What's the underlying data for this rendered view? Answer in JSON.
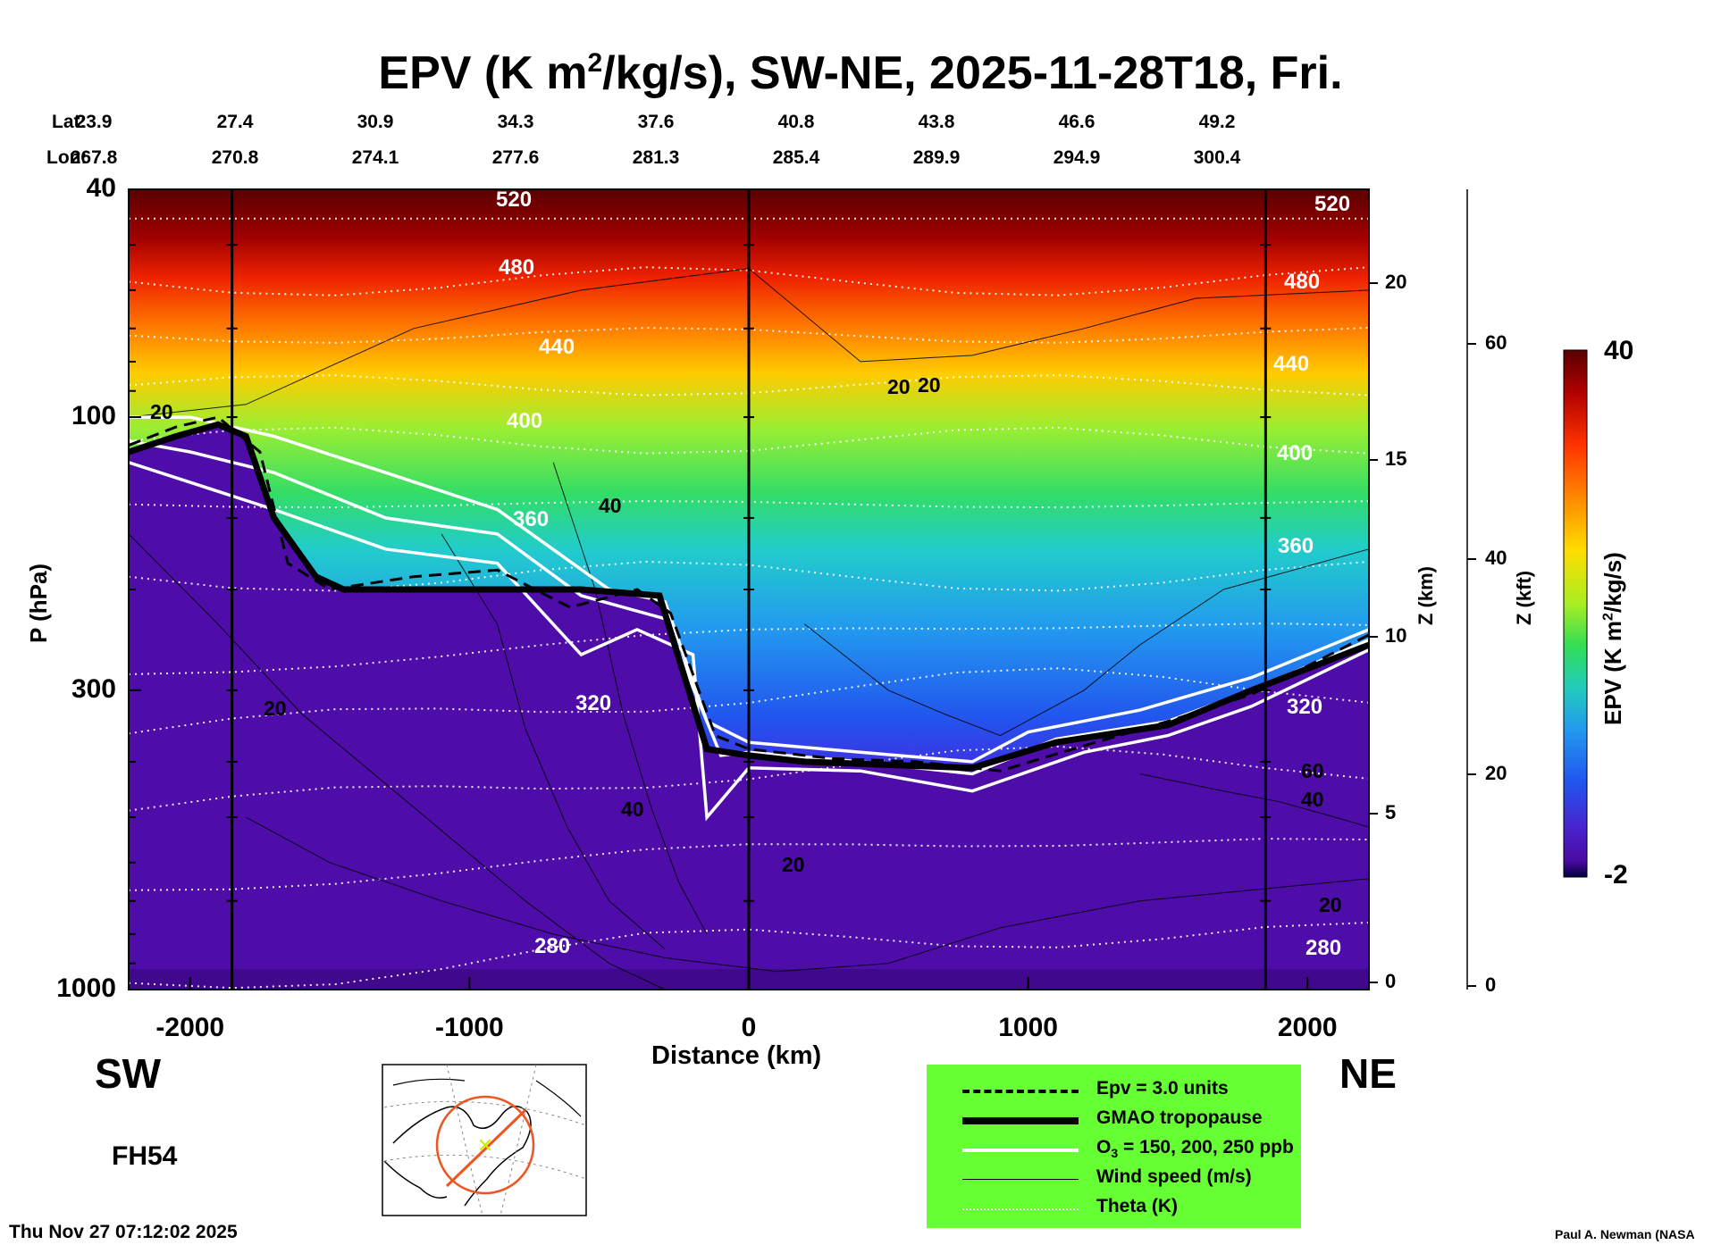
{
  "title": {
    "prefix": "EPV (K m",
    "sup": "2",
    "suffix": "/kg/s), SW-NE, 2025-11-28T18, Fri."
  },
  "header": {
    "lat_label": "Lat:",
    "lon_label": "Lon:",
    "lat_values": [
      "23.9",
      "27.4",
      "30.9",
      "34.3",
      "37.6",
      "40.8",
      "43.8",
      "46.6",
      "49.2"
    ],
    "lon_values": [
      "267.8",
      "270.8",
      "274.1",
      "277.6",
      "281.3",
      "285.4",
      "289.9",
      "294.9",
      "300.4"
    ]
  },
  "chart_data": {
    "type": "heatmap",
    "title": "EPV (K m2/kg/s), SW-NE, 2025-11-28T18, Fri.",
    "xlabel": "Distance (km)",
    "ylabel": "P (hPa)",
    "xlim": [
      -2220,
      2220
    ],
    "x_ticks": [
      "-2000",
      "-1000",
      "0",
      "1000",
      "2000"
    ],
    "y_ticks": [
      "40",
      "100",
      "300",
      "1000"
    ],
    "z_km_ticks": [
      "20",
      "15",
      "10",
      "5",
      "0"
    ],
    "z_km_label": "Z (km)",
    "z_kft_ticks": [
      "60",
      "40",
      "20",
      "0"
    ],
    "z_kft_label": "Z (kft)",
    "colorbar": {
      "label_prefix": "EPV (K m",
      "label_sup": "2",
      "label_suffix": "/kg/s)",
      "max_label": "40",
      "min_label": "-2",
      "range": [
        -2,
        40
      ]
    },
    "theta_labels": [
      "520",
      "480",
      "440",
      "400",
      "360",
      "320",
      "280",
      "520",
      "480",
      "440",
      "400",
      "360",
      "320",
      "280"
    ],
    "wind_labels": [
      "20",
      "20",
      "40",
      "20",
      "40",
      "20",
      "20",
      "60",
      "40",
      "20"
    ],
    "tropopause": [
      [
        -2220,
        115
      ],
      [
        -2050,
        108
      ],
      [
        -1900,
        103
      ],
      [
        -1800,
        108
      ],
      [
        -1700,
        150
      ],
      [
        -1550,
        190
      ],
      [
        -1450,
        200
      ],
      [
        -600,
        200
      ],
      [
        -320,
        205
      ],
      [
        -150,
        380
      ],
      [
        0,
        390
      ],
      [
        200,
        400
      ],
      [
        500,
        405
      ],
      [
        800,
        410
      ],
      [
        1100,
        370
      ],
      [
        1500,
        345
      ],
      [
        1800,
        300
      ],
      [
        2220,
        250
      ]
    ],
    "epv3_contour": [
      [
        -2220,
        112
      ],
      [
        -2050,
        104
      ],
      [
        -1900,
        100
      ],
      [
        -1750,
        115
      ],
      [
        -1650,
        180
      ],
      [
        -1500,
        200
      ],
      [
        -1200,
        190
      ],
      [
        -900,
        185
      ],
      [
        -640,
        215
      ],
      [
        -400,
        200
      ],
      [
        -280,
        220
      ],
      [
        -120,
        360
      ],
      [
        0,
        380
      ],
      [
        300,
        395
      ],
      [
        600,
        400
      ],
      [
        900,
        415
      ],
      [
        1200,
        375
      ],
      [
        1500,
        340
      ],
      [
        1800,
        305
      ],
      [
        2220,
        240
      ]
    ],
    "ozone_contours": [
      [
        [
          -2220,
          100
        ],
        [
          -2000,
          100
        ],
        [
          -1700,
          108
        ],
        [
          -1300,
          125
        ],
        [
          -900,
          145
        ],
        [
          -500,
          200
        ],
        [
          -300,
          210
        ],
        [
          -150,
          340
        ],
        [
          0,
          370
        ],
        [
          400,
          385
        ],
        [
          800,
          400
        ],
        [
          1000,
          355
        ],
        [
          1400,
          325
        ],
        [
          1800,
          285
        ],
        [
          2220,
          235
        ]
      ],
      [
        [
          -2220,
          110
        ],
        [
          -2000,
          115
        ],
        [
          -1700,
          125
        ],
        [
          -1300,
          150
        ],
        [
          -900,
          160
        ],
        [
          -600,
          205
        ],
        [
          -300,
          225
        ],
        [
          -100,
          390
        ],
        [
          0,
          385
        ],
        [
          400,
          400
        ],
        [
          800,
          420
        ],
        [
          1100,
          365
        ],
        [
          1500,
          340
        ],
        [
          1800,
          300
        ],
        [
          2220,
          245
        ]
      ],
      [
        [
          -2220,
          120
        ],
        [
          -2000,
          130
        ],
        [
          -1700,
          145
        ],
        [
          -1300,
          170
        ],
        [
          -900,
          180
        ],
        [
          -600,
          260
        ],
        [
          -400,
          235
        ],
        [
          -200,
          260
        ],
        [
          -150,
          500
        ],
        [
          0,
          410
        ],
        [
          400,
          415
        ],
        [
          800,
          450
        ],
        [
          1200,
          385
        ],
        [
          1500,
          360
        ],
        [
          1800,
          320
        ],
        [
          2220,
          255
        ]
      ]
    ]
  },
  "legend": {
    "items": [
      "Epv = 3.0 units",
      "GMAO tropopause",
      "Wind speed (m/s)",
      "Theta (K)"
    ],
    "ozone_prefix": "O",
    "ozone_sub": "3",
    "ozone_suffix": " = 150, 200, 250 ppb"
  },
  "side": {
    "sw": "SW",
    "ne": "NE",
    "fh": "FH54"
  },
  "footer": {
    "timestamp": "Thu Nov 27 07:12:02 2025",
    "credit": "Paul A. Newman (NASA"
  }
}
